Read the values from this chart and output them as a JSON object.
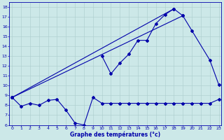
{
  "xlabel": "Graphe des températures (°c)",
  "hours": [
    0,
    1,
    2,
    3,
    4,
    5,
    6,
    7,
    8,
    9,
    10,
    11,
    12,
    13,
    14,
    15,
    16,
    17,
    18,
    19,
    20,
    21,
    22,
    23
  ],
  "series_min": [
    8.8,
    7.9,
    8.2,
    8.0,
    8.5,
    8.6,
    7.5,
    6.2,
    6.0,
    8.8,
    8.2,
    8.2,
    8.2,
    8.2,
    8.2,
    8.2,
    8.2,
    8.2,
    8.2,
    8.2,
    8.2,
    8.2,
    8.2,
    8.6
  ],
  "series_line1": [
    8.8,
    17.1
  ],
  "series_line1_x": [
    0,
    19
  ],
  "series_line2": [
    8.8,
    17.8
  ],
  "series_line2_x": [
    0,
    18
  ],
  "series_top": [
    null,
    null,
    null,
    null,
    null,
    null,
    null,
    null,
    null,
    null,
    13.0,
    11.2,
    12.3,
    13.2,
    14.6,
    14.6,
    16.3,
    17.2,
    17.8,
    17.1,
    15.6,
    null,
    12.6,
    10.1
  ],
  "ylim": [
    6,
    18.5
  ],
  "xlim": [
    -0.3,
    23.3
  ],
  "yticks": [
    6,
    7,
    8,
    9,
    10,
    11,
    12,
    13,
    14,
    15,
    16,
    17,
    18
  ],
  "xticks": [
    0,
    1,
    2,
    3,
    4,
    5,
    6,
    7,
    8,
    9,
    10,
    11,
    12,
    13,
    14,
    15,
    16,
    17,
    18,
    19,
    20,
    21,
    22,
    23
  ],
  "bg_color": "#cce8e8",
  "line_color": "#0000aa",
  "grid_color": "#aacccc"
}
